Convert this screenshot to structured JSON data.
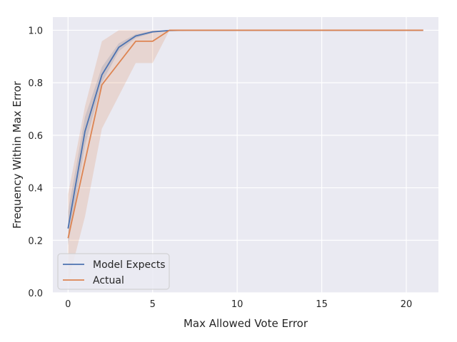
{
  "chart_data": {
    "type": "line",
    "title": "",
    "xlabel": "Max Allowed Vote Error",
    "ylabel": "Frequency Within Max Error",
    "xlim": [
      -0.9,
      21.9
    ],
    "ylim": [
      0.0,
      1.05
    ],
    "xticks": [
      0,
      5,
      10,
      15,
      20
    ],
    "yticks": [
      0.0,
      0.2,
      0.4,
      0.6,
      0.8,
      1.0
    ],
    "xtick_labels": [
      "0",
      "5",
      "10",
      "15",
      "20"
    ],
    "ytick_labels": [
      "0.0",
      "0.2",
      "0.4",
      "0.6",
      "0.8",
      "1.0"
    ],
    "grid": true,
    "background": "#eaeaf2",
    "legend_position": "bottom-left",
    "series": [
      {
        "name": "Model Expects",
        "color": "#4c72b0",
        "x": [
          0,
          1,
          2,
          3,
          4,
          5,
          6,
          7,
          8,
          9,
          10,
          11,
          12,
          13,
          14,
          15,
          16,
          17,
          18,
          19,
          20,
          21
        ],
        "y": [
          0.245,
          0.615,
          0.83,
          0.935,
          0.978,
          0.994,
          0.999,
          1.0,
          1.0,
          1.0,
          1.0,
          1.0,
          1.0,
          1.0,
          1.0,
          1.0,
          1.0,
          1.0,
          1.0,
          1.0,
          1.0,
          1.0
        ],
        "ci_lower": [
          0.18,
          0.56,
          0.8,
          0.92,
          0.97,
          0.99,
          0.998,
          1.0,
          1.0,
          1.0,
          1.0,
          1.0,
          1.0,
          1.0,
          1.0,
          1.0,
          1.0,
          1.0,
          1.0,
          1.0,
          1.0,
          1.0
        ],
        "ci_upper": [
          0.31,
          0.67,
          0.86,
          0.95,
          0.985,
          0.997,
          1.0,
          1.0,
          1.0,
          1.0,
          1.0,
          1.0,
          1.0,
          1.0,
          1.0,
          1.0,
          1.0,
          1.0,
          1.0,
          1.0,
          1.0,
          1.0
        ]
      },
      {
        "name": "Actual",
        "color": "#dd8452",
        "x": [
          0,
          1,
          2,
          3,
          4,
          5,
          6,
          7,
          8,
          9,
          10,
          11,
          12,
          13,
          14,
          15,
          16,
          17,
          18,
          19,
          20,
          21
        ],
        "y": [
          0.208,
          0.5,
          0.792,
          0.875,
          0.958,
          0.958,
          1.0,
          1.0,
          1.0,
          1.0,
          1.0,
          1.0,
          1.0,
          1.0,
          1.0,
          1.0,
          1.0,
          1.0,
          1.0,
          1.0,
          1.0,
          1.0
        ],
        "ci_lower": [
          0.04,
          0.29,
          0.625,
          0.75,
          0.875,
          0.875,
          1.0,
          1.0,
          1.0,
          1.0,
          1.0,
          1.0,
          1.0,
          1.0,
          1.0,
          1.0,
          1.0,
          1.0,
          1.0,
          1.0,
          1.0,
          1.0
        ],
        "ci_upper": [
          0.375,
          0.71,
          0.958,
          1.0,
          1.0,
          1.0,
          1.0,
          1.0,
          1.0,
          1.0,
          1.0,
          1.0,
          1.0,
          1.0,
          1.0,
          1.0,
          1.0,
          1.0,
          1.0,
          1.0,
          1.0,
          1.0
        ]
      }
    ]
  }
}
